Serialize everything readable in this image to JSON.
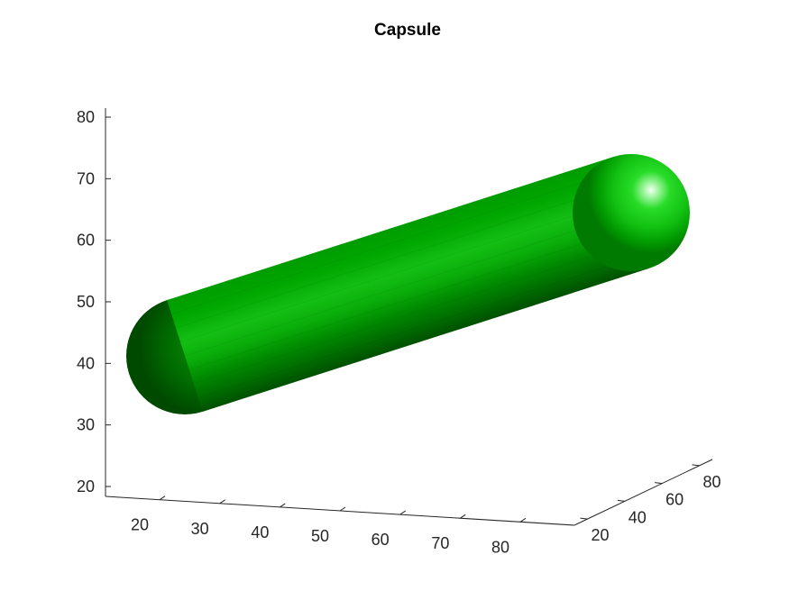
{
  "chart_data": {
    "type": "3d-surface",
    "title": "Capsule",
    "shape": "capsule",
    "color": "#00b300",
    "highlight_color": "#eaffea",
    "shadow_color": "#004d00",
    "x_ticks": [
      20,
      30,
      40,
      50,
      60,
      70,
      80
    ],
    "y_ticks": [
      20,
      40,
      60,
      80
    ],
    "z_ticks": [
      20,
      30,
      40,
      50,
      60,
      70,
      80
    ],
    "grid": false
  }
}
